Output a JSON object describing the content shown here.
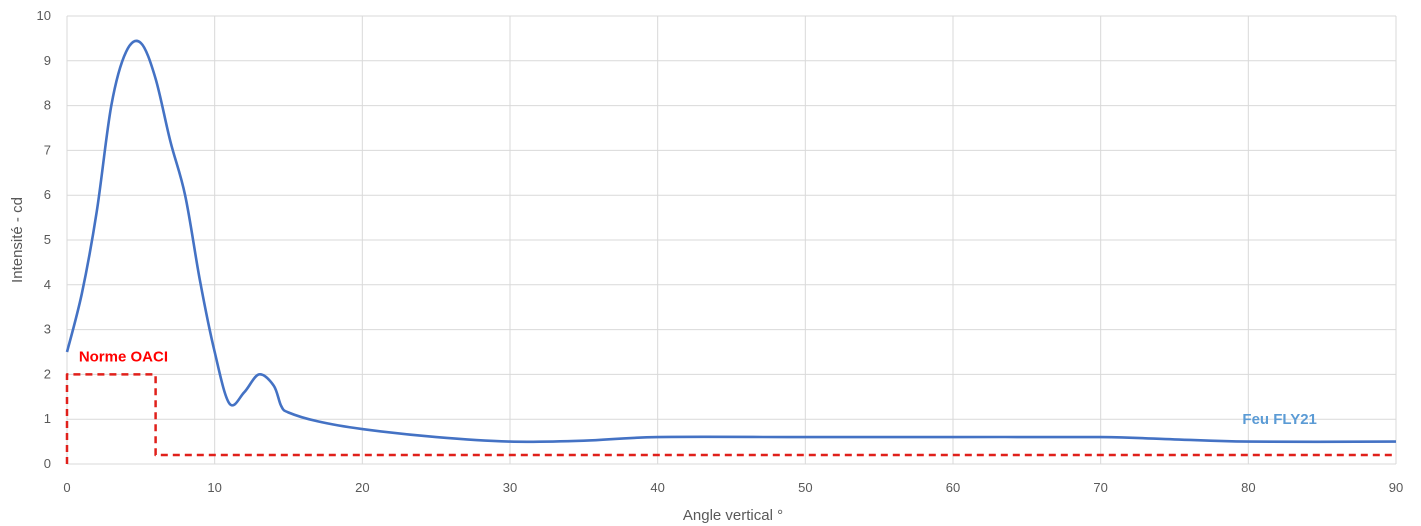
{
  "chart_data": {
    "type": "line",
    "xlabel": "Angle vertical °",
    "ylabel": "Intensité - cd",
    "xlim": [
      0,
      90
    ],
    "ylim": [
      0,
      10
    ],
    "x_ticks": [
      "0",
      "10",
      "20",
      "30",
      "40",
      "50",
      "60",
      "70",
      "80",
      "90"
    ],
    "y_ticks": [
      "0",
      "1",
      "2",
      "3",
      "4",
      "5",
      "6",
      "7",
      "8",
      "9",
      "10"
    ],
    "grid": true,
    "series": [
      {
        "name": "Feu FLY21",
        "color": "#4472c4",
        "style": "solid",
        "points": [
          [
            0,
            2.5
          ],
          [
            1,
            3.8
          ],
          [
            2,
            5.6
          ],
          [
            3,
            8.0
          ],
          [
            4,
            9.2
          ],
          [
            5,
            9.4
          ],
          [
            6,
            8.6
          ],
          [
            7,
            7.2
          ],
          [
            8,
            6.0
          ],
          [
            9,
            4.1
          ],
          [
            10,
            2.5
          ],
          [
            11,
            1.35
          ],
          [
            12,
            1.6
          ],
          [
            13,
            2.0
          ],
          [
            14,
            1.75
          ],
          [
            14.5,
            1.3
          ],
          [
            15,
            1.15
          ],
          [
            17,
            0.95
          ],
          [
            20,
            0.78
          ],
          [
            25,
            0.6
          ],
          [
            30,
            0.5
          ],
          [
            35,
            0.52
          ],
          [
            40,
            0.6
          ],
          [
            50,
            0.6
          ],
          [
            60,
            0.6
          ],
          [
            70,
            0.6
          ],
          [
            75,
            0.55
          ],
          [
            80,
            0.5
          ],
          [
            90,
            0.5
          ]
        ]
      },
      {
        "name": "Norme OACI",
        "color": "#e0201b",
        "style": "dashed",
        "points": [
          [
            0,
            0
          ],
          [
            0,
            2.0
          ],
          [
            6,
            2.0
          ],
          [
            6,
            0.2
          ],
          [
            90,
            0.2
          ]
        ]
      }
    ],
    "annotations": [
      {
        "text": "Norme OACI",
        "color": "#ff0000",
        "x": 0.8,
        "y": 2.4
      },
      {
        "text": "Feu FLY21",
        "color": "#5b9bd5",
        "x": 79.6,
        "y": 1.0
      }
    ]
  }
}
